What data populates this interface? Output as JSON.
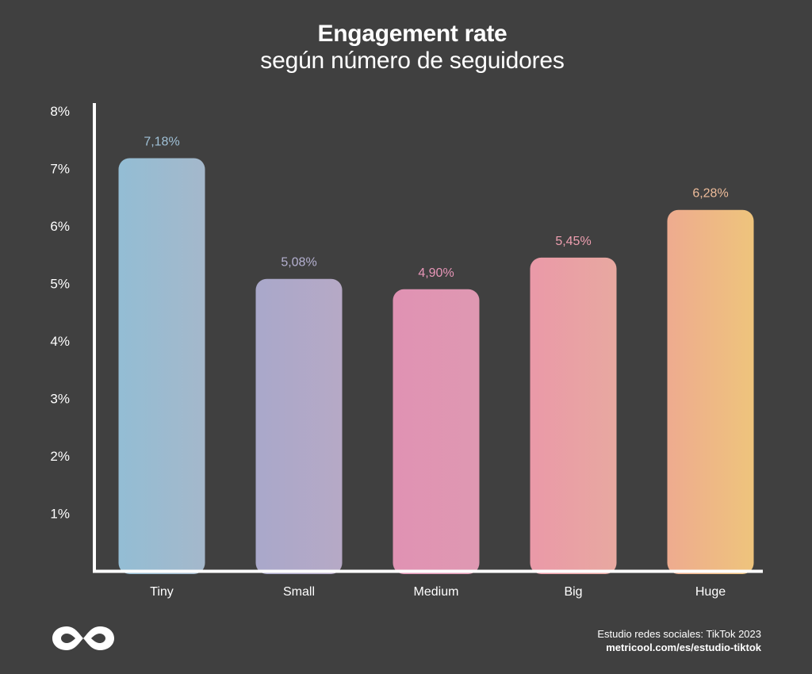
{
  "header": {
    "title": "Engagement rate",
    "subtitle": "según número de seguidores"
  },
  "chart_data": {
    "type": "bar",
    "categories": [
      "Tiny",
      "Small",
      "Medium",
      "Big",
      "Huge"
    ],
    "values": [
      7.18,
      5.08,
      4.9,
      5.45,
      6.28
    ],
    "value_labels": [
      "7,18%",
      "5,08%",
      "4,90%",
      "5,45%",
      "6,28%"
    ],
    "bar_colors": [
      [
        "#93bdd4",
        "#a4b8cb"
      ],
      [
        "#a9a8ca",
        "#b6a9c6"
      ],
      [
        "#e092b3",
        "#df98b2"
      ],
      [
        "#ea99a8",
        "#e8a8a0"
      ],
      [
        "#eeab8f",
        "#eec47c"
      ]
    ],
    "label_colors": [
      "#9fc0d6",
      "#b4b0d0",
      "#e896b8",
      "#ee9fb0",
      "#eebc9a"
    ],
    "yticks": [
      1,
      2,
      3,
      4,
      5,
      6,
      7,
      8
    ],
    "ytick_labels": [
      "1%",
      "2%",
      "3%",
      "4%",
      "5%",
      "6%",
      "7%",
      "8%"
    ],
    "ylim": [
      0,
      8
    ],
    "xlabel": "",
    "ylabel": "",
    "grid": false
  },
  "footer": {
    "source": "Estudio redes sociales: TikTok 2023",
    "url": "metricool.com/es/estudio-tiktok",
    "logo_icon": "metricool-infinity-logo"
  }
}
